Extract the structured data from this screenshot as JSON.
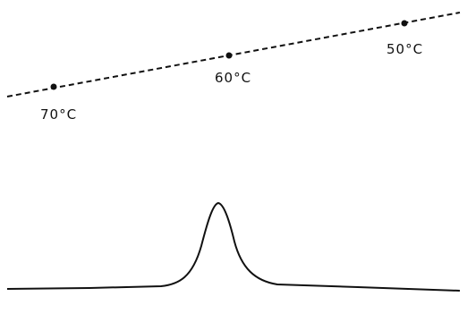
{
  "points": [
    {
      "label": "70°C"
    },
    {
      "label": "60°C"
    },
    {
      "label": "50°C"
    }
  ]
}
